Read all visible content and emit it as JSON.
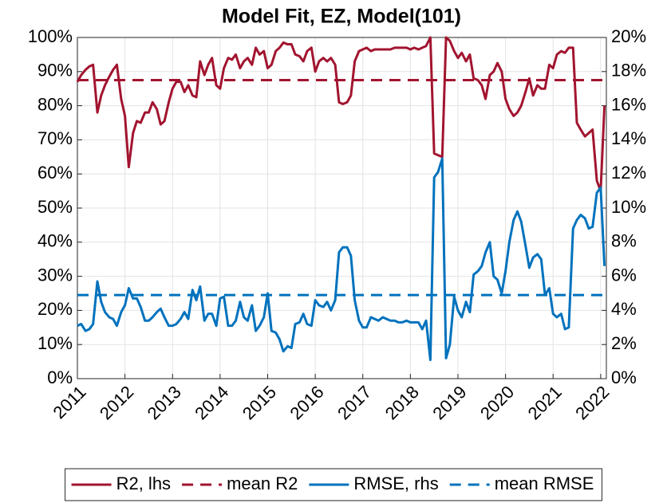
{
  "chart_data": {
    "type": "line",
    "title": "Model Fit, EZ, Model(101)",
    "x": [
      2011,
      2011.08,
      2011.17,
      2011.25,
      2011.33,
      2011.42,
      2011.5,
      2011.58,
      2011.67,
      2011.75,
      2011.83,
      2011.92,
      2012,
      2012.08,
      2012.17,
      2012.25,
      2012.33,
      2012.42,
      2012.5,
      2012.58,
      2012.67,
      2012.75,
      2012.83,
      2012.92,
      2013,
      2013.08,
      2013.17,
      2013.25,
      2013.33,
      2013.42,
      2013.5,
      2013.58,
      2013.67,
      2013.75,
      2013.83,
      2013.92,
      2014,
      2014.08,
      2014.17,
      2014.25,
      2014.33,
      2014.42,
      2014.5,
      2014.58,
      2014.67,
      2014.75,
      2014.83,
      2014.92,
      2015,
      2015.08,
      2015.17,
      2015.25,
      2015.33,
      2015.42,
      2015.5,
      2015.58,
      2015.67,
      2015.75,
      2015.83,
      2015.92,
      2016,
      2016.08,
      2016.17,
      2016.25,
      2016.33,
      2016.42,
      2016.5,
      2016.58,
      2016.67,
      2016.75,
      2016.83,
      2016.92,
      2017,
      2017.08,
      2017.17,
      2017.25,
      2017.33,
      2017.42,
      2017.5,
      2017.58,
      2017.67,
      2017.75,
      2017.83,
      2017.92,
      2018,
      2018.08,
      2018.17,
      2018.25,
      2018.33,
      2018.42,
      2018.5,
      2018.58,
      2018.67,
      2018.75,
      2018.83,
      2018.92,
      2019,
      2019.08,
      2019.17,
      2019.25,
      2019.33,
      2019.42,
      2019.5,
      2019.58,
      2019.67,
      2019.75,
      2019.83,
      2019.92,
      2020,
      2020.08,
      2020.17,
      2020.25,
      2020.33,
      2020.42,
      2020.5,
      2020.58,
      2020.67,
      2020.75,
      2020.83,
      2020.92,
      2021,
      2021.08,
      2021.17,
      2021.25,
      2021.33,
      2021.42,
      2021.5,
      2021.58,
      2021.67,
      2021.75,
      2021.83,
      2021.92,
      2022,
      2022.08
    ],
    "series": [
      {
        "name": "R2, lhs",
        "color": "#a2142f",
        "axis": "y",
        "values": [
          87,
          89,
          90.5,
          91.5,
          92,
          78,
          83,
          86,
          88.5,
          90.5,
          92,
          82,
          77,
          62,
          72,
          75.5,
          75,
          78,
          78,
          81,
          79,
          74.5,
          75.5,
          81,
          85,
          87,
          87,
          84,
          86,
          83,
          82.5,
          93,
          89,
          92,
          94,
          86,
          85,
          91,
          94,
          93.5,
          95,
          91,
          93,
          94,
          92,
          97,
          95,
          96,
          91,
          92,
          96,
          97,
          98.5,
          98,
          98,
          95,
          94.5,
          93,
          96,
          97,
          90,
          93,
          94,
          93,
          94,
          92,
          81,
          80.5,
          81,
          83,
          93,
          96,
          96.5,
          97,
          96,
          96.5,
          96.5,
          96.5,
          96.5,
          96.5,
          97,
          97,
          97,
          97,
          96.5,
          97,
          96.5,
          97,
          97.5,
          100,
          66,
          65.5,
          65,
          100,
          99,
          96,
          94,
          95.5,
          93,
          95,
          88,
          87.5,
          86,
          82,
          89,
          90,
          92.5,
          90,
          82,
          79,
          77,
          78,
          80,
          84,
          88,
          83,
          86,
          85,
          85,
          92,
          91,
          95,
          96,
          95.5,
          97,
          97,
          75,
          73,
          71,
          72,
          73,
          58,
          55,
          80
        ]
      },
      {
        "name": "mean R2",
        "color": "#a2142f",
        "axis": "y",
        "dashed": true,
        "value": 87.5
      },
      {
        "name": "RMSE, rhs",
        "color": "#0072bd",
        "axis": "y2",
        "values": [
          3.1,
          3.2,
          2.8,
          2.9,
          3.2,
          5.7,
          4.5,
          3.9,
          3.6,
          3.5,
          3.1,
          3.9,
          4.3,
          5.3,
          4.7,
          4.7,
          4.2,
          3.4,
          3.4,
          3.6,
          3.9,
          4.1,
          3.6,
          3.1,
          3.1,
          3.2,
          3.5,
          3.9,
          3.5,
          5.2,
          4.6,
          5.4,
          3.4,
          3.8,
          3.8,
          3.1,
          4.7,
          4.8,
          3.1,
          3.1,
          3.4,
          4.5,
          3.6,
          3.4,
          4.3,
          2.8,
          3.1,
          3.6,
          5.0,
          2.8,
          2.7,
          2.3,
          1.6,
          1.9,
          1.8,
          3.2,
          3.3,
          3.8,
          3.2,
          3.1,
          4.6,
          4.3,
          4.2,
          4.5,
          4.0,
          4.6,
          7.4,
          7.7,
          7.7,
          7.2,
          4.6,
          3.4,
          3.0,
          3.0,
          3.6,
          3.5,
          3.4,
          3.6,
          3.5,
          3.4,
          3.4,
          3.3,
          3.3,
          3.4,
          3.3,
          3.3,
          3.3,
          2.9,
          3.4,
          1.1,
          11.8,
          12.1,
          12.9,
          1.2,
          2.0,
          4.8,
          4.0,
          3.6,
          4.5,
          3.9,
          6.1,
          6.3,
          6.6,
          7.4,
          8.0,
          6.0,
          5.8,
          5.0,
          6.3,
          8.0,
          9.3,
          9.8,
          9.2,
          7.8,
          6.5,
          7.1,
          7.3,
          7.0,
          4.9,
          5.3,
          3.8,
          3.6,
          3.8,
          2.9,
          3.0,
          8.8,
          9.3,
          9.6,
          9.4,
          8.8,
          8.9,
          10.9,
          11.2,
          6.6
        ]
      },
      {
        "name": "mean RMSE",
        "color": "#0072bd",
        "axis": "y2",
        "dashed": true,
        "value": 4.9
      }
    ],
    "xlim": [
      2011,
      2022.12
    ],
    "xticks": [
      2011,
      2012,
      2013,
      2014,
      2015,
      2016,
      2017,
      2018,
      2019,
      2020,
      2021,
      2022
    ],
    "ylim": [
      0,
      100
    ],
    "yticks": [
      {
        "value": 0,
        "label": "0%"
      },
      {
        "value": 10,
        "label": "10%"
      },
      {
        "value": 20,
        "label": "20%"
      },
      {
        "value": 30,
        "label": "30%"
      },
      {
        "value": 40,
        "label": "40%"
      },
      {
        "value": 50,
        "label": "50%"
      },
      {
        "value": 60,
        "label": "60%"
      },
      {
        "value": 70,
        "label": "70%"
      },
      {
        "value": 80,
        "label": "80%"
      },
      {
        "value": 90,
        "label": "90%"
      },
      {
        "value": 100,
        "label": "100%"
      }
    ],
    "y2lim": [
      0,
      20
    ],
    "y2ticks": [
      {
        "value": 0,
        "label": "0%"
      },
      {
        "value": 2,
        "label": "2%"
      },
      {
        "value": 4,
        "label": "4%"
      },
      {
        "value": 6,
        "label": "6%"
      },
      {
        "value": 8,
        "label": "8%"
      },
      {
        "value": 10,
        "label": "10%"
      },
      {
        "value": 12,
        "label": "12%"
      },
      {
        "value": 14,
        "label": "14%"
      },
      {
        "value": 16,
        "label": "16%"
      },
      {
        "value": 18,
        "label": "18%"
      },
      {
        "value": 20,
        "label": "20%"
      }
    ],
    "grid": true,
    "legend": "bottom"
  }
}
